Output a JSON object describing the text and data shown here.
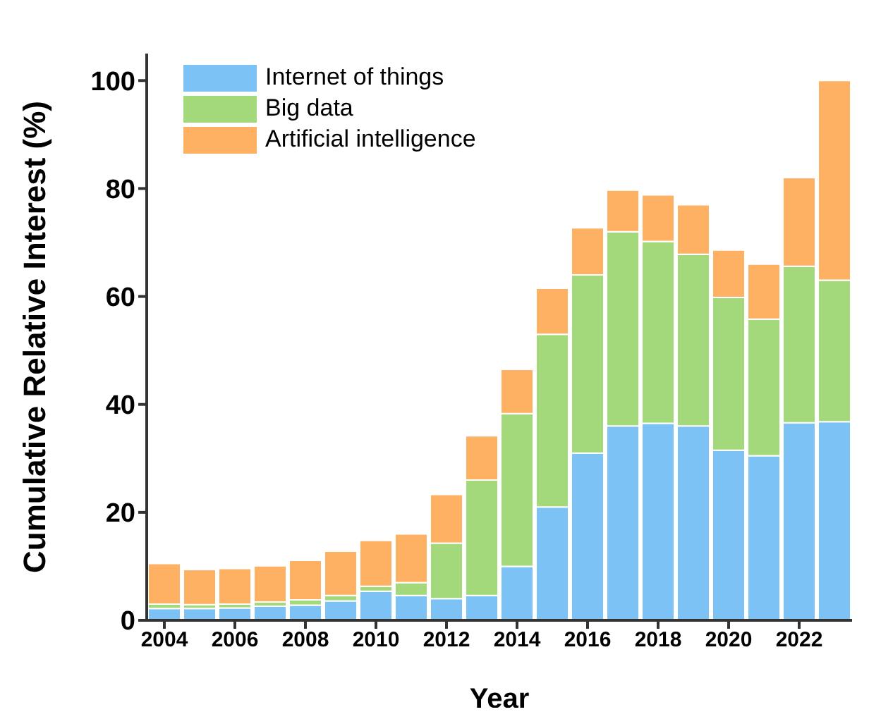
{
  "chart_data": {
    "type": "bar",
    "stacked": true,
    "xlabel": "Year",
    "ylabel": "Cumulative Relative Interest (%)",
    "categories": [
      "2004",
      null,
      "2006",
      null,
      "2008",
      null,
      "2010",
      null,
      "2012",
      null,
      "2014",
      null,
      "2016",
      null,
      "2018",
      null,
      "2020",
      null,
      "2022",
      null
    ],
    "series": [
      {
        "name": "Internet of things",
        "color": "#7cc2f5",
        "values": [
          2.2,
          2.2,
          2.3,
          2.6,
          2.8,
          3.6,
          5.4,
          4.6,
          4.0,
          4.6,
          10,
          21,
          31,
          36,
          36.5,
          36,
          31.5,
          30.5,
          36.6,
          36.8
        ]
      },
      {
        "name": "Big data",
        "color": "#a3d97b",
        "values": [
          0.8,
          0.7,
          0.7,
          0.8,
          1.0,
          1.0,
          0.9,
          2.4,
          10.3,
          21.4,
          28.3,
          32,
          33,
          36,
          33.7,
          31.8,
          28.3,
          25.3,
          29,
          26.2
        ]
      },
      {
        "name": "Artificial intelligence",
        "color": "#ffb163",
        "values": [
          7.5,
          6.5,
          6.6,
          6.7,
          7.3,
          8.2,
          8.5,
          9.0,
          9.0,
          8.2,
          8.2,
          8.5,
          8.7,
          7.7,
          8.6,
          9.2,
          8.8,
          10.2,
          16.4,
          37
        ]
      }
    ],
    "ylim": [
      0,
      105
    ],
    "yticks": [
      0,
      20,
      40,
      60,
      80,
      100
    ],
    "legend": "top left",
    "grid": false
  }
}
